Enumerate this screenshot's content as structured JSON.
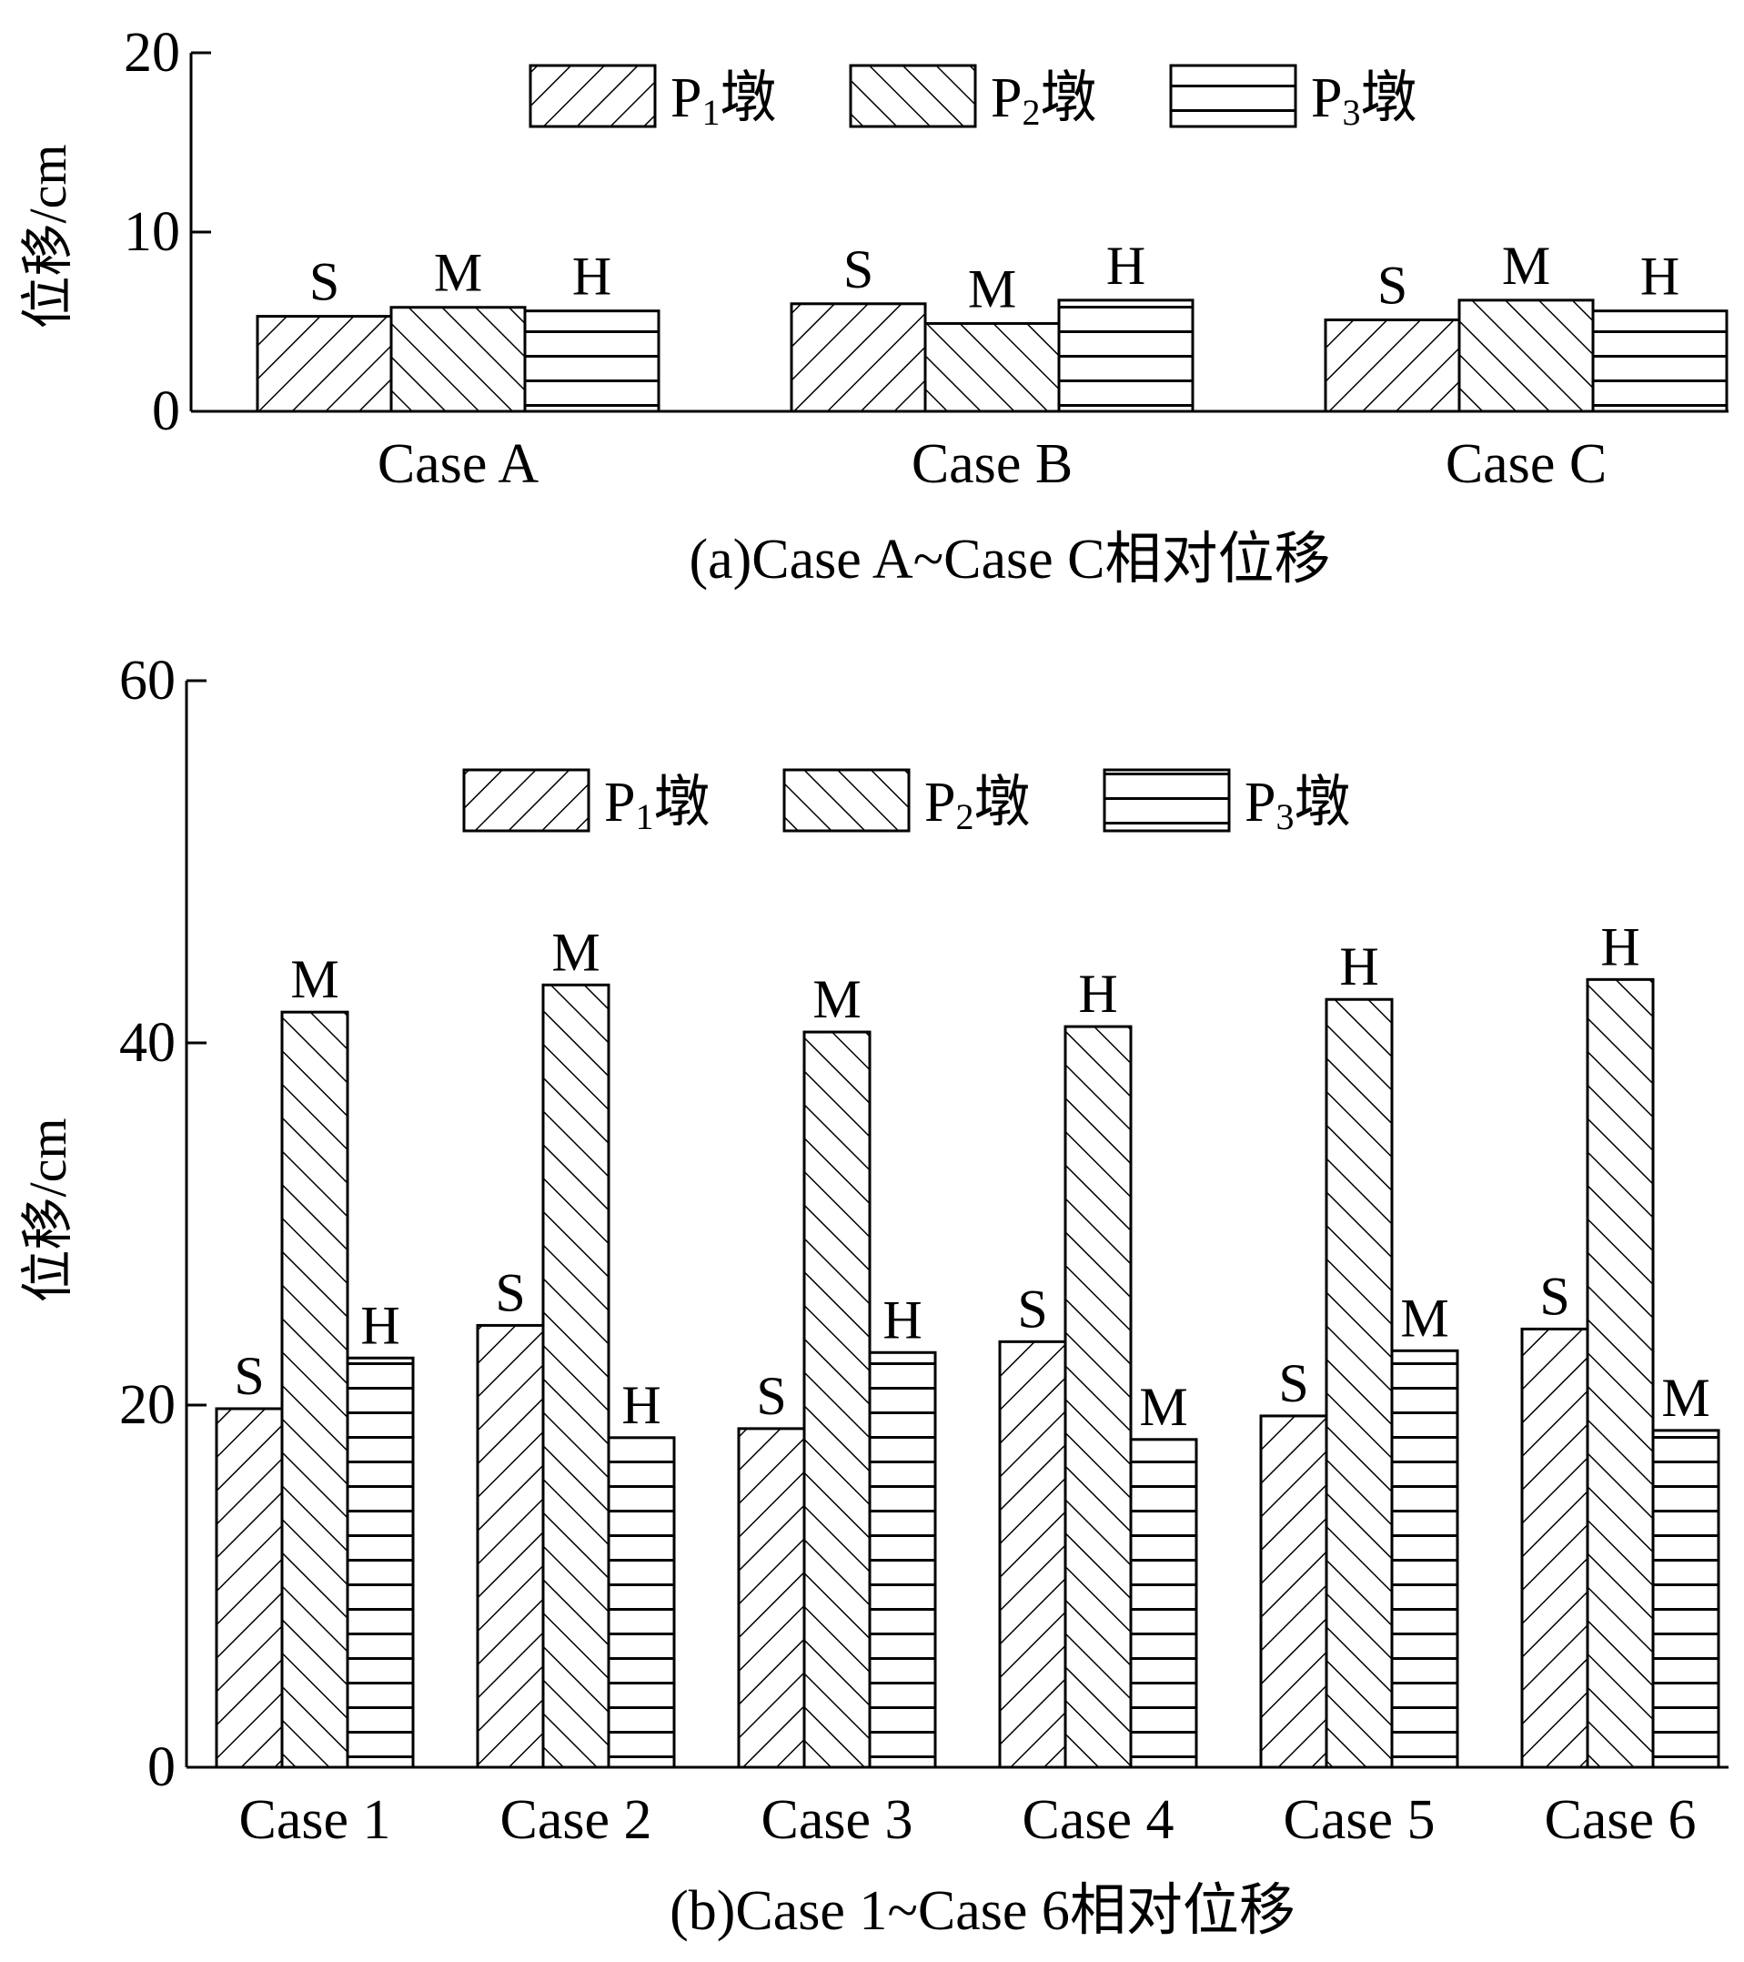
{
  "chart_data": [
    {
      "type": "bar",
      "id": "a",
      "caption": "(a)Case A~Case C相对位移",
      "ylabel": "位移/cm",
      "ylim": [
        0,
        20
      ],
      "yticks": [
        0,
        10,
        20
      ],
      "categories": [
        "Case A",
        "Case B",
        "Case C"
      ],
      "legend": [
        {
          "base": "P",
          "sub": "1",
          "suffix": "墩"
        },
        {
          "base": "P",
          "sub": "2",
          "suffix": "墩"
        },
        {
          "base": "P",
          "sub": "3",
          "suffix": "墩"
        }
      ],
      "series": [
        {
          "key": "P1",
          "pattern": "diag-up",
          "values": [
            5.3,
            6.0,
            5.1
          ],
          "labels": [
            "S",
            "S",
            "S"
          ]
        },
        {
          "key": "P2",
          "pattern": "diag-down",
          "values": [
            5.8,
            4.9,
            6.2
          ],
          "labels": [
            "M",
            "M",
            "M"
          ]
        },
        {
          "key": "P3",
          "pattern": "horizontal",
          "values": [
            5.6,
            6.2,
            5.6
          ],
          "labels": [
            "H",
            "H",
            "H"
          ]
        }
      ]
    },
    {
      "type": "bar",
      "id": "b",
      "caption": "(b)Case 1~Case 6相对位移",
      "ylabel": "位移/cm",
      "ylim": [
        0,
        60
      ],
      "yticks": [
        0,
        20,
        40,
        60
      ],
      "categories": [
        "Case 1",
        "Case 2",
        "Case 3",
        "Case 4",
        "Case 5",
        "Case 6"
      ],
      "legend": [
        {
          "base": "P",
          "sub": "1",
          "suffix": "墩"
        },
        {
          "base": "P",
          "sub": "2",
          "suffix": "墩"
        },
        {
          "base": "P",
          "sub": "3",
          "suffix": "墩"
        }
      ],
      "series": [
        {
          "key": "P1",
          "pattern": "diag-up",
          "values": [
            19.8,
            24.4,
            18.7,
            23.5,
            19.4,
            24.2
          ],
          "labels": [
            "S",
            "S",
            "S",
            "S",
            "S",
            "S"
          ]
        },
        {
          "key": "P2",
          "pattern": "diag-down",
          "values": [
            41.7,
            43.2,
            40.6,
            40.9,
            42.4,
            43.5
          ],
          "labels": [
            "M",
            "M",
            "M",
            "H",
            "H",
            "H"
          ]
        },
        {
          "key": "P3",
          "pattern": "horizontal",
          "values": [
            22.6,
            18.2,
            22.9,
            18.1,
            23.0,
            18.6
          ],
          "labels": [
            "H",
            "H",
            "H",
            "M",
            "M",
            "M"
          ]
        }
      ]
    }
  ]
}
